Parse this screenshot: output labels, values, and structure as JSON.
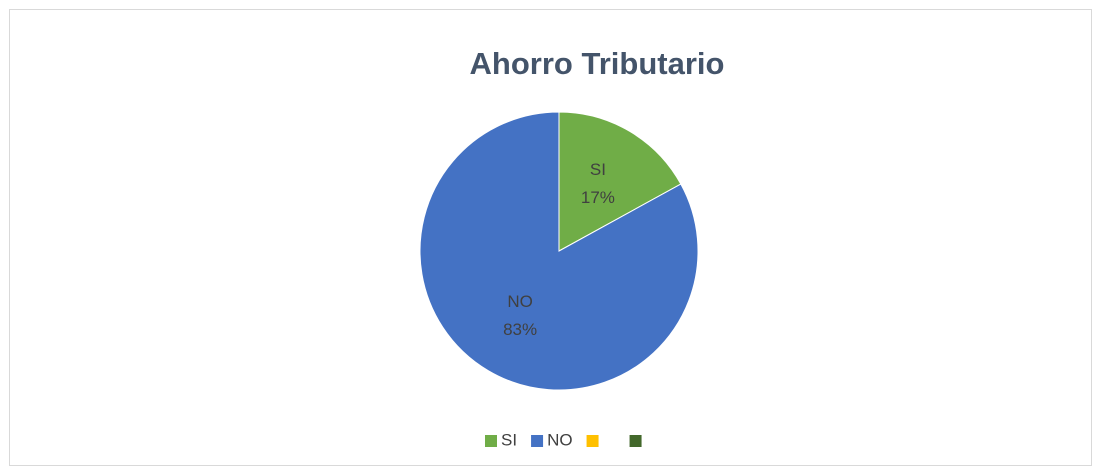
{
  "chart_data": {
    "type": "pie",
    "title": "Ahorro Tributario",
    "categories": [
      "SI",
      "NO",
      null,
      null
    ],
    "values": [
      17,
      83,
      0,
      0
    ],
    "value_labels": [
      "17%",
      "83%",
      null,
      null
    ],
    "colors": [
      "#70ad47",
      "#4472c4",
      "#ffc000",
      "#43682b"
    ],
    "legend": "bottom"
  }
}
